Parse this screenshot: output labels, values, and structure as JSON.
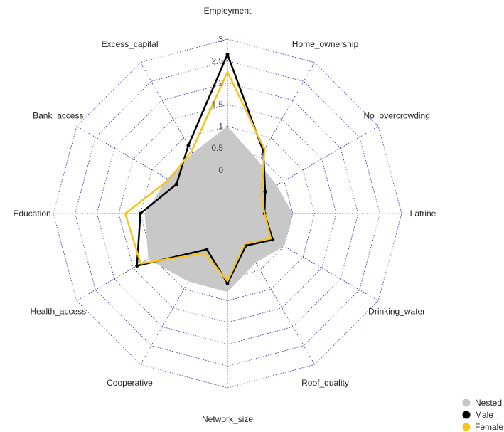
{
  "chart_data": {
    "type": "radar",
    "title": "",
    "axes": [
      "Employment",
      "Home_ownership",
      "No_overcrowding",
      "Latrine",
      "Drinking_water",
      "Roof_quality",
      "Network_size",
      "Cooperative",
      "Health_access",
      "Education",
      "Bank_access",
      "Excess_capital"
    ],
    "ticks": [
      "0",
      "0.5",
      "1",
      "1.5",
      "2",
      "2.5",
      "3"
    ],
    "range": [
      -1,
      3
    ],
    "grid": "dotted",
    "legend_position": "bottom-right",
    "series": [
      {
        "name": "Nested",
        "color": "#c8c8c8",
        "fill": true,
        "values": [
          1.0,
          0.4,
          0.3,
          0.5,
          0.5,
          0.3,
          0.8,
          0.8,
          1.1,
          0.9,
          0.6,
          0.6
        ]
      },
      {
        "name": "Male",
        "color": "#000000",
        "fill": false,
        "values": [
          2.65,
          0.65,
          0.0,
          -0.15,
          0.2,
          -0.15,
          0.6,
          -0.05,
          1.4,
          1.0,
          0.35,
          0.8
        ]
      },
      {
        "name": "Female",
        "color": "#f5c518",
        "fill": false,
        "values": [
          2.25,
          0.7,
          -0.1,
          -0.15,
          0.15,
          -0.2,
          0.55,
          0.05,
          1.3,
          1.35,
          0.55,
          0.65
        ]
      }
    ]
  }
}
